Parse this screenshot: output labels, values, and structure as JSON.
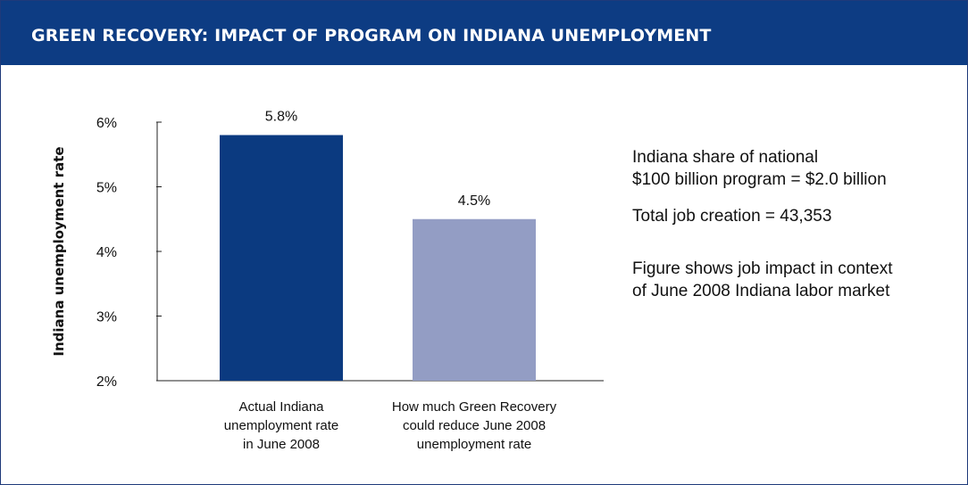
{
  "header": {
    "title": "GREEN RECOVERY: IMPACT OF PROGRAM ON INDIANA UNEMPLOYMENT"
  },
  "colors": {
    "header_bg": "#0d3c83",
    "bar_actual": "#0b3a80",
    "bar_reduced": "#939dc4"
  },
  "chart_data": {
    "type": "bar",
    "title": "GREEN RECOVERY: IMPACT OF PROGRAM ON INDIANA UNEMPLOYMENT",
    "ylabel": "Indiana unemployment rate",
    "xlabel": "",
    "ylim": [
      2,
      6
    ],
    "yticks": [
      2,
      3,
      4,
      5,
      6
    ],
    "ytick_labels": [
      "2%",
      "3%",
      "4%",
      "5%",
      "6%"
    ],
    "categories": [
      [
        "Actual Indiana",
        "unemployment rate",
        "in June 2008"
      ],
      [
        "How much Green Recovery",
        "could reduce June 2008",
        "unemployment rate"
      ]
    ],
    "values": [
      5.8,
      4.5
    ],
    "data_labels": [
      "5.8%",
      "4.5%"
    ],
    "grid": false,
    "legend": "none"
  },
  "notes": {
    "line1a": "Indiana share of national",
    "line1b": "$100 billion program = $2.0 billion",
    "line2": "Total job creation = 43,353",
    "line3a": "Figure shows job impact in context",
    "line3b": "of June 2008 Indiana labor market"
  }
}
